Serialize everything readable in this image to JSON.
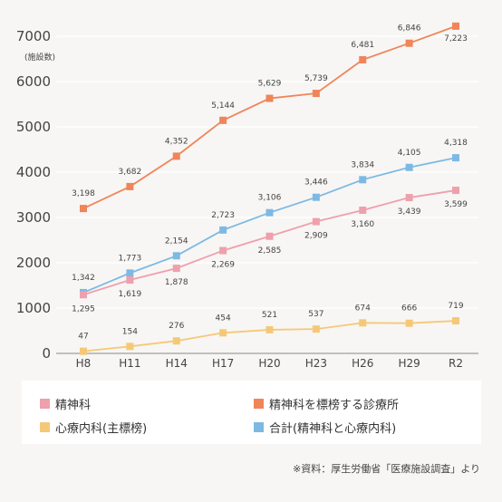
{
  "chart_data": {
    "type": "line",
    "categories": [
      "H8",
      "H11",
      "H14",
      "H17",
      "H20",
      "H23",
      "H26",
      "H29",
      "R2"
    ],
    "ylabel": "(施設数)",
    "ylim": [
      0,
      7000
    ],
    "yticks": [
      "0",
      "1000",
      "2000",
      "3000",
      "4000",
      "5000",
      "6000",
      "7000"
    ],
    "grid": true,
    "legend_position": "bottom",
    "series": [
      {
        "name": "精神科を標榜する診療所",
        "color": "#f0855a",
        "values": [
          3198,
          3682,
          4352,
          5144,
          5629,
          5739,
          6481,
          6846,
          7223
        ],
        "labels": [
          "3,198",
          "3,682",
          "4,352",
          "5,144",
          "5,629",
          "5,739",
          "6,481",
          "6,846",
          "7,223"
        ]
      },
      {
        "name": "合計(精神科と心療内科)",
        "color": "#7db9e3",
        "values": [
          1342,
          1773,
          2154,
          2723,
          3106,
          3446,
          3834,
          4105,
          4318
        ],
        "labels": [
          "1,342",
          "1,773",
          "2,154",
          "2,723",
          "3,106",
          "3,446",
          "3,834",
          "4,105",
          "4,318"
        ]
      },
      {
        "name": "精神科",
        "color": "#eea0ad",
        "values": [
          1295,
          1619,
          1878,
          2269,
          2585,
          2909,
          3160,
          3439,
          3599
        ],
        "labels": [
          "1,295",
          "1,619",
          "1,878",
          "2,269",
          "2,585",
          "2,909",
          "3,160",
          "3,439",
          "3,599"
        ]
      },
      {
        "name": "心療内科(主標榜)",
        "color": "#f5c878",
        "values": [
          47,
          154,
          276,
          454,
          521,
          537,
          674,
          666,
          719
        ],
        "labels": [
          "47",
          "154",
          "276",
          "454",
          "521",
          "537",
          "674",
          "666",
          "719"
        ]
      }
    ]
  },
  "legend": {
    "item1": "精神科",
    "item2": "精神科を標榜する診療所",
    "item3": "心療内科(主標榜)",
    "item4": "合計(精神科と心療内科)"
  },
  "source": "※資料：厚生労働省「医療施設調査」より"
}
